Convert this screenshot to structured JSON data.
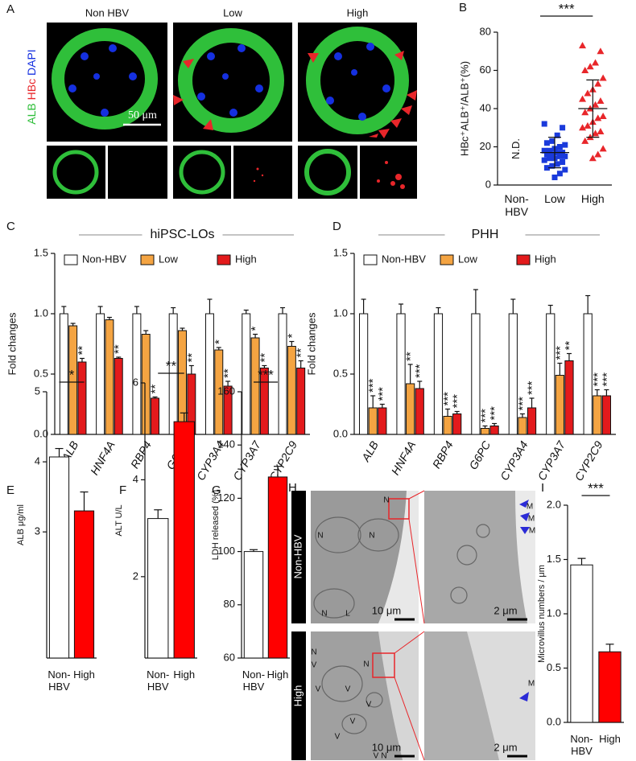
{
  "panel_a": {
    "label": "A",
    "columns": [
      "Non HBV",
      "Low",
      "High"
    ],
    "stain": [
      "ALB",
      "HBc",
      "DAPI"
    ],
    "scale_bar": "50 μm"
  },
  "panel_h": {
    "label": "H",
    "rows": [
      "Non-HBV",
      "High"
    ],
    "scale_bars": [
      "10 μm",
      "2 μm",
      "10 μm",
      "2 μm"
    ],
    "annotations": [
      "N",
      "N",
      "N",
      "N",
      "L",
      "M",
      "M",
      "M",
      "N",
      "V",
      "N",
      "V",
      "V",
      "V",
      "V",
      "V",
      "V",
      "N",
      "M"
    ]
  },
  "chart_data": [
    {
      "type": "dot",
      "panel": "B",
      "ylabel": "HBc⁺ALB⁺/ALB⁺(%)",
      "categories": [
        "Non-\nHBV",
        "Low",
        "High"
      ],
      "points": [
        [],
        [
          32,
          30,
          26,
          23,
          22,
          21,
          20,
          19,
          18,
          18,
          17,
          17,
          16,
          16,
          15,
          15,
          14,
          14,
          13,
          12,
          11,
          10,
          9,
          8,
          6,
          4
        ],
        [
          73,
          70,
          64,
          62,
          60,
          56,
          53,
          50,
          48,
          45,
          44,
          42,
          40,
          38,
          36,
          35,
          33,
          31,
          30,
          28,
          27,
          25,
          23,
          19,
          16,
          14
        ]
      ],
      "means": [
        null,
        17,
        40
      ],
      "sds": [
        null,
        8,
        15
      ],
      "colors": [
        null,
        "#1a3adb",
        "#e8262a"
      ],
      "markers": [
        null,
        "square",
        "triangle"
      ],
      "annotation": "N.D.",
      "significance": "***",
      "ylim": [
        0,
        80
      ],
      "yticks": [
        0,
        20,
        40,
        60,
        80
      ]
    },
    {
      "type": "bar",
      "panel": "C",
      "subtitle": "hiPSC-LOs",
      "ylabel": "Fold changes",
      "categories": [
        "ALB",
        "HNF4A",
        "RBP4",
        "G6PC",
        "CYP3A4",
        "CYP3A7",
        "CYP2C9"
      ],
      "series": [
        {
          "name": "Non-HBV",
          "color": "#ffffff",
          "values": [
            1.0,
            1.0,
            1.0,
            1.0,
            1.0,
            1.0,
            1.0
          ],
          "errors": [
            0.06,
            0.06,
            0.06,
            0.05,
            0.12,
            0.03,
            0.05
          ],
          "significance": [
            null,
            null,
            null,
            null,
            null,
            null,
            null
          ]
        },
        {
          "name": "Low",
          "color": "#f4a442",
          "values": [
            0.9,
            0.95,
            0.83,
            0.86,
            0.7,
            0.8,
            0.73
          ],
          "errors": [
            0.02,
            0.02,
            0.03,
            0.02,
            0.02,
            0.03,
            0.04
          ],
          "significance": [
            null,
            null,
            null,
            null,
            "*",
            "*",
            "*"
          ]
        },
        {
          "name": "High",
          "color": "#e31a1c",
          "values": [
            0.6,
            0.63,
            0.3,
            0.5,
            0.4,
            0.55,
            0.55
          ],
          "errors": [
            0.03,
            0.01,
            0.01,
            0.07,
            0.04,
            0.02,
            0.06
          ],
          "significance": [
            "**",
            "**",
            "**",
            "**",
            "**",
            "**",
            "**"
          ]
        }
      ],
      "ylim": [
        0,
        1.5
      ],
      "yticks": [
        {
          "value": 0,
          "label": "0.0"
        },
        0.5,
        {
          "value": 1,
          "label": "1.0"
        },
        1.5
      ]
    },
    {
      "type": "bar",
      "panel": "D",
      "subtitle": "PHH",
      "ylabel": "Fold changes",
      "categories": [
        "ALB",
        "HNF4A",
        "RBP4",
        "G6PC",
        "CYP3A4",
        "CYP3A7",
        "CYP2C9"
      ],
      "series": [
        {
          "name": "Non-HBV",
          "color": "#ffffff",
          "values": [
            1.0,
            1.0,
            1.0,
            1.0,
            1.0,
            1.0,
            1.0
          ],
          "errors": [
            0.12,
            0.08,
            0.05,
            0.2,
            0.12,
            0.07,
            0.15
          ],
          "significance": [
            null,
            null,
            null,
            null,
            null,
            null,
            null
          ]
        },
        {
          "name": "Low",
          "color": "#f4a442",
          "values": [
            0.22,
            0.42,
            0.15,
            0.05,
            0.14,
            0.49,
            0.32
          ],
          "errors": [
            0.1,
            0.16,
            0.06,
            0.02,
            0.03,
            0.1,
            0.05
          ],
          "significance": [
            "***",
            "**",
            "***",
            "***",
            "***",
            "***",
            "***"
          ]
        },
        {
          "name": "High",
          "color": "#e31a1c",
          "values": [
            0.22,
            0.38,
            0.17,
            0.07,
            0.22,
            0.61,
            0.32
          ],
          "errors": [
            0.03,
            0.06,
            0.02,
            0.02,
            0.08,
            0.06,
            0.05
          ],
          "significance": [
            "***",
            "***",
            "***",
            "***",
            "***",
            "**",
            "***"
          ]
        }
      ],
      "ylim": [
        0,
        1.5
      ],
      "yticks": [
        {
          "value": 0,
          "label": "0.0"
        },
        0.5,
        {
          "value": 1,
          "label": "1.0"
        },
        1.5
      ]
    },
    {
      "type": "pair",
      "panel": "E",
      "ylabel": "ALB μg/ml",
      "categories": [
        "Non-\nHBV",
        "High"
      ],
      "values": [
        4.07,
        3.3
      ],
      "errors": [
        0.12,
        0.27
      ],
      "colors": [
        "#ffffff",
        "#ff0000"
      ],
      "significance": "*",
      "ylim": [
        1.2,
        5
      ],
      "yticks": [
        3,
        4,
        5
      ]
    },
    {
      "type": "pair",
      "panel": "F",
      "ylabel": "ALT U/L",
      "categories": [
        "Non-\nHBV",
        "High"
      ],
      "values": [
        3.2,
        5.2
      ],
      "errors": [
        0.18,
        0.18
      ],
      "colors": [
        "#ffffff",
        "#ff0000"
      ],
      "significance": "**",
      "ylim": [
        0.32,
        6
      ],
      "yticks": [
        2,
        4,
        6
      ]
    },
    {
      "type": "pair",
      "panel": "G",
      "ylabel": "LDH released (%)",
      "categories": [
        "Non-\nHBV",
        "High"
      ],
      "values": [
        100,
        128
      ],
      "errors": [
        0.7,
        4
      ],
      "colors": [
        "#ffffff",
        "#ff0000"
      ],
      "significance": "***",
      "ylim": [
        60,
        160
      ],
      "yticks": [
        60,
        80,
        100,
        120,
        140,
        160
      ]
    },
    {
      "type": "pair",
      "panel": "I",
      "ylabel": "Microvillus numbers / μm",
      "categories": [
        "Non-\nHBV",
        "High"
      ],
      "values": [
        1.45,
        0.65
      ],
      "errors": [
        0.06,
        0.07
      ],
      "colors": [
        "#ffffff",
        "#ff0000"
      ],
      "significance": "***",
      "ylim": [
        0,
        2
      ],
      "yticks": [
        {
          "value": 0,
          "label": "0.0"
        },
        0.5,
        {
          "value": 1,
          "label": "1.0"
        },
        1.5,
        {
          "value": 2,
          "label": "2.0"
        }
      ]
    }
  ]
}
